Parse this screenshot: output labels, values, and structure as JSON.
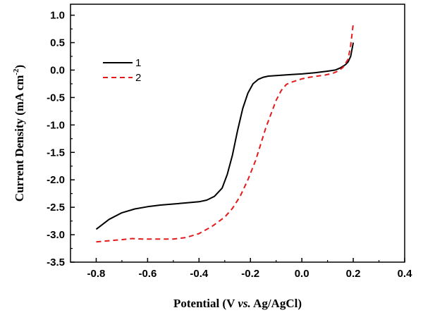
{
  "chart_data": {
    "type": "line",
    "xlabel_parts": [
      "Potential (V ",
      "vs.",
      " Ag/AgCl)"
    ],
    "ylabel_parts": [
      "Current Density (mA cm",
      "-2",
      ")"
    ],
    "xlim": [
      -0.9,
      0.4
    ],
    "ylim": [
      -3.5,
      1.2
    ],
    "xticks": [
      -0.8,
      -0.6,
      -0.4,
      -0.2,
      0.0,
      0.2,
      0.4
    ],
    "xtick_labels": [
      "-0.8",
      "-0.6",
      "-0.4",
      "-0.2",
      "0.0",
      "0.2",
      "0.4"
    ],
    "yticks": [
      -3.5,
      -3.0,
      -2.5,
      -2.0,
      -1.5,
      -1.0,
      -0.5,
      0.0,
      0.5,
      1.0
    ],
    "ytick_labels": [
      "-3.5",
      "-3.0",
      "-2.5",
      "-2.0",
      "-1.5",
      "-1.0",
      "-0.5",
      "0.0",
      "0.5",
      "1.0"
    ],
    "grid": false,
    "legend_position": "top-left",
    "series": [
      {
        "name": "1",
        "color": "#000000",
        "dash": "solid",
        "x": [
          -0.8,
          -0.75,
          -0.7,
          -0.65,
          -0.6,
          -0.55,
          -0.5,
          -0.45,
          -0.4,
          -0.37,
          -0.34,
          -0.31,
          -0.29,
          -0.27,
          -0.25,
          -0.23,
          -0.21,
          -0.19,
          -0.17,
          -0.15,
          -0.13,
          -0.1,
          -0.07,
          -0.04,
          0.0,
          0.05,
          0.1,
          0.13,
          0.15,
          0.17,
          0.18,
          0.19,
          0.2
        ],
        "y": [
          -2.9,
          -2.72,
          -2.6,
          -2.53,
          -2.49,
          -2.46,
          -2.44,
          -2.42,
          -2.4,
          -2.37,
          -2.3,
          -2.15,
          -1.9,
          -1.55,
          -1.1,
          -0.7,
          -0.42,
          -0.25,
          -0.17,
          -0.13,
          -0.11,
          -0.1,
          -0.09,
          -0.08,
          -0.07,
          -0.05,
          -0.02,
          0.0,
          0.04,
          0.1,
          0.15,
          0.25,
          0.5
        ]
      },
      {
        "name": "2",
        "color": "#e41a1c",
        "dash": "dashed",
        "x": [
          -0.8,
          -0.75,
          -0.7,
          -0.66,
          -0.62,
          -0.55,
          -0.5,
          -0.45,
          -0.4,
          -0.35,
          -0.3,
          -0.27,
          -0.24,
          -0.21,
          -0.18,
          -0.16,
          -0.14,
          -0.12,
          -0.1,
          -0.08,
          -0.06,
          -0.04,
          -0.02,
          0.0,
          0.03,
          0.06,
          0.09,
          0.12,
          0.14,
          0.16,
          0.18,
          0.19,
          0.2
        ],
        "y": [
          -3.13,
          -3.11,
          -3.09,
          -3.07,
          -3.08,
          -3.08,
          -3.08,
          -3.05,
          -2.98,
          -2.85,
          -2.68,
          -2.52,
          -2.3,
          -2.0,
          -1.65,
          -1.35,
          -1.05,
          -0.8,
          -0.55,
          -0.37,
          -0.26,
          -0.22,
          -0.19,
          -0.16,
          -0.13,
          -0.11,
          -0.09,
          -0.06,
          -0.02,
          0.05,
          0.2,
          0.45,
          0.85
        ]
      }
    ]
  }
}
